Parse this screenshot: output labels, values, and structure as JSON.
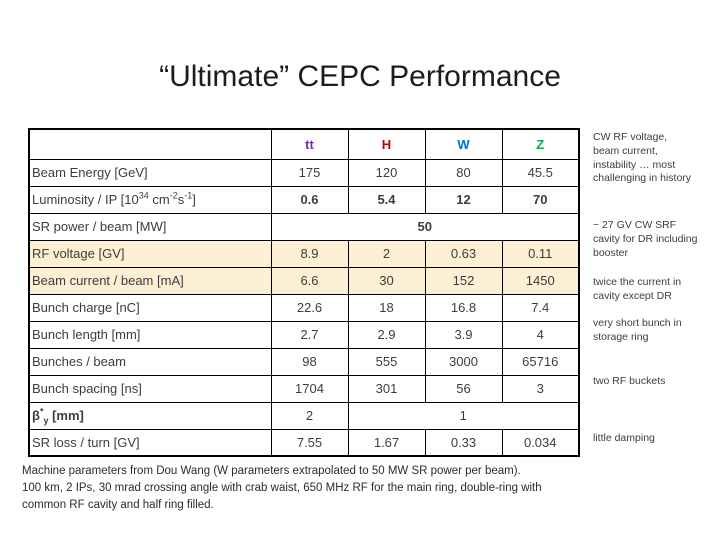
{
  "title": "“Ultimate” CEPC Performance",
  "colors": {
    "highlight_row_bg": "#FCEFD4",
    "accent_red": "#C0504D",
    "column_tt": "#7030A0",
    "column_H": "#C00000",
    "column_W": "#0070C0",
    "column_Z": "#00B050"
  },
  "table": {
    "columns": [
      {
        "label": "tt",
        "color": "#7030A0"
      },
      {
        "label": "H",
        "color": "#C00000"
      },
      {
        "label": "W",
        "color": "#0070C0"
      },
      {
        "label": "Z",
        "color": "#00B050"
      }
    ],
    "rows": [
      {
        "label": "Beam Energy [GeV]",
        "cells": [
          {
            "t": "175"
          },
          {
            "t": "120"
          },
          {
            "t": "80"
          },
          {
            "t": "45.5"
          }
        ]
      },
      {
        "label_parts": [
          {
            "t": "Luminosity / IP [10"
          },
          {
            "t": "34",
            "style": "sup"
          },
          {
            "t": " cm"
          },
          {
            "t": "-2",
            "style": "sup"
          },
          {
            "t": "s"
          },
          {
            "t": "-1",
            "style": "sup"
          },
          {
            "t": "]"
          }
        ],
        "bold_values": true,
        "cells": [
          {
            "t": "0.6"
          },
          {
            "t": "5.4"
          },
          {
            "t": "12"
          },
          {
            "t": "70"
          }
        ]
      },
      {
        "label": "SR power / beam [MW]",
        "cells": [
          {
            "t": "50",
            "bold": true,
            "span": 4
          }
        ]
      },
      {
        "label": "RF voltage [GV]",
        "highlight": true,
        "cells": [
          {
            "t": "8.9",
            "red": true
          },
          {
            "t": "2"
          },
          {
            "t": "0.63"
          },
          {
            "t": "0.11"
          }
        ]
      },
      {
        "label": "Beam current / beam [mA]",
        "highlight": true,
        "cells": [
          {
            "t": "6.6"
          },
          {
            "t": "30"
          },
          {
            "t": "152"
          },
          {
            "t": "1450",
            "red": true
          }
        ]
      },
      {
        "label": "Bunch charge [nC]",
        "cells": [
          {
            "t": "22.6"
          },
          {
            "t": "18"
          },
          {
            "t": "16.8"
          },
          {
            "t": "7.4"
          }
        ]
      },
      {
        "label": "Bunch length [mm]",
        "cells": [
          {
            "t": "2.7",
            "red": true
          },
          {
            "t": "2.9"
          },
          {
            "t": "3.9"
          },
          {
            "t": "4"
          }
        ]
      },
      {
        "label": "Bunches / beam",
        "cells": [
          {
            "t": "98"
          },
          {
            "t": "555"
          },
          {
            "t": "3000"
          },
          {
            "t": "65716"
          }
        ]
      },
      {
        "label": "Bunch spacing [ns]",
        "cells": [
          {
            "t": "1704"
          },
          {
            "t": "301"
          },
          {
            "t": "56"
          },
          {
            "t": "3",
            "red": true
          }
        ]
      },
      {
        "label_parts": [
          {
            "t": "β"
          },
          {
            "t": "*",
            "style": "sup"
          },
          {
            "t": "y",
            "style": "sub"
          },
          {
            "t": " [mm]"
          }
        ],
        "bold_label": true,
        "cells": [
          {
            "t": "2"
          },
          {
            "t": "1",
            "red": true,
            "span": 3
          }
        ]
      },
      {
        "label": "SR loss / turn [GV]",
        "cells": [
          {
            "t": "7.55"
          },
          {
            "t": "1.67"
          },
          {
            "t": "0.33"
          },
          {
            "t": "0.034",
            "red": true
          }
        ]
      }
    ]
  },
  "annotations": [
    "CW RF voltage,\nbeam current,\ninstability … most\nchallenging in history",
    "~ 27 GV CW SRF\ncavity for DR including\nbooster",
    "twice the current in\ncavity except DR",
    "very short bunch in\nstorage ring",
    "two RF buckets",
    "little damping"
  ],
  "footer": {
    "text": "Machine parameters from Dou Wang (W parameters extrapolated to 50 MW SR power per beam).\n100 km, 2 IPs, 30 mrad crossing angle with crab waist, 650 MHz RF for the main ring, double-ring with\ncommon RF cavity and half ring filled."
  }
}
